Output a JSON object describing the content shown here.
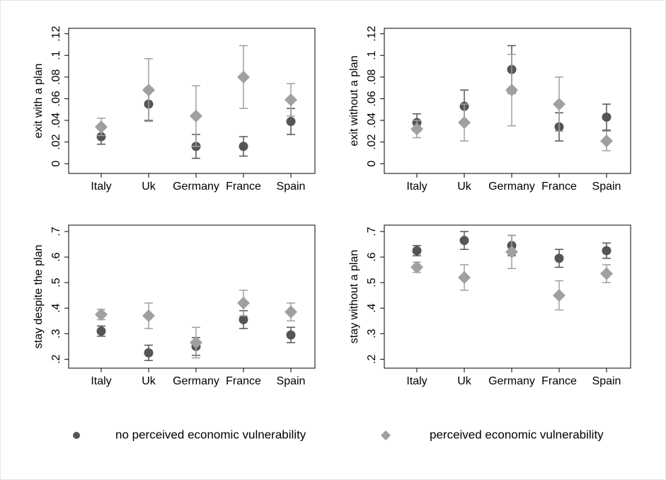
{
  "chart_data": [
    {
      "type": "errorbar",
      "ylabel": "exit with a plan",
      "categories": [
        "Italy",
        "Uk",
        "Germany",
        "France",
        "Spain"
      ],
      "ylim": [
        -0.009,
        0.125
      ],
      "yticks": [
        0,
        {
          "value": 0.02,
          "label": ".02"
        },
        {
          "value": 0.04,
          "label": ".04"
        },
        {
          "value": 0.06,
          "label": ".06"
        },
        {
          "value": 0.08,
          "label": ".08"
        },
        {
          "value": 0.1,
          "label": ".1"
        },
        {
          "value": 0.12,
          "label": ".12"
        }
      ],
      "series": [
        {
          "name": "no perceived economic vulnerability",
          "color": "#555555",
          "marker": "circle",
          "values": [
            0.025,
            0.055,
            0.016,
            0.016,
            0.039
          ],
          "errors": [
            0.007,
            0.015,
            0.011,
            0.009,
            0.012
          ]
        },
        {
          "name": "perceived economic vulnerability",
          "color": "#a0a0a0",
          "marker": "diamond",
          "values": [
            0.034,
            0.068,
            0.044,
            0.08,
            0.059
          ],
          "errors": [
            0.008,
            0.029,
            0.028,
            0.029,
            0.015
          ]
        }
      ]
    },
    {
      "type": "errorbar",
      "ylabel": "exit without a plan",
      "categories": [
        "Italy",
        "Uk",
        "Germany",
        "France",
        "Spain"
      ],
      "ylim": [
        -0.009,
        0.125
      ],
      "yticks": [
        0,
        {
          "value": 0.02,
          "label": ".02"
        },
        {
          "value": 0.04,
          "label": ".04"
        },
        {
          "value": 0.06,
          "label": ".06"
        },
        {
          "value": 0.08,
          "label": ".08"
        },
        {
          "value": 0.1,
          "label": ".1"
        },
        {
          "value": 0.12,
          "label": ".12"
        }
      ],
      "series": [
        {
          "name": "no perceived economic vulnerability",
          "color": "#555555",
          "marker": "circle",
          "values": [
            0.038,
            0.053,
            0.087,
            0.034,
            0.043
          ],
          "errors": [
            0.008,
            0.015,
            0.022,
            0.013,
            0.012
          ]
        },
        {
          "name": "perceived economic vulnerability",
          "color": "#a0a0a0",
          "marker": "diamond",
          "values": [
            0.032,
            0.038,
            0.068,
            0.055,
            0.021
          ],
          "errors": [
            0.008,
            0.017,
            0.033,
            0.025,
            0.009
          ]
        }
      ]
    },
    {
      "type": "errorbar",
      "ylabel": "stay despite the plan",
      "categories": [
        "Italy",
        "Uk",
        "Germany",
        "France",
        "Spain"
      ],
      "ylim": [
        0.165,
        0.725
      ],
      "yticks": [
        {
          "value": 0.2,
          "label": ".2"
        },
        {
          "value": 0.3,
          "label": ".3"
        },
        {
          "value": 0.4,
          "label": ".4"
        },
        {
          "value": 0.5,
          "label": ".5"
        },
        {
          "value": 0.6,
          "label": ".6"
        },
        {
          "value": 0.7,
          "label": ".7"
        }
      ],
      "series": [
        {
          "name": "no perceived economic vulnerability",
          "color": "#555555",
          "marker": "circle",
          "values": [
            0.31,
            0.225,
            0.25,
            0.355,
            0.295
          ],
          "errors": [
            0.02,
            0.03,
            0.035,
            0.035,
            0.03
          ]
        },
        {
          "name": "perceived economic vulnerability",
          "color": "#a0a0a0",
          "marker": "diamond",
          "values": [
            0.375,
            0.37,
            0.265,
            0.42,
            0.385
          ],
          "errors": [
            0.02,
            0.05,
            0.06,
            0.05,
            0.035
          ]
        }
      ]
    },
    {
      "type": "errorbar",
      "ylabel": "stay without a plan",
      "categories": [
        "Italy",
        "Uk",
        "Germany",
        "France",
        "Spain"
      ],
      "ylim": [
        0.165,
        0.725
      ],
      "yticks": [
        {
          "value": 0.2,
          "label": ".2"
        },
        {
          "value": 0.3,
          "label": ".3"
        },
        {
          "value": 0.4,
          "label": ".4"
        },
        {
          "value": 0.5,
          "label": ".5"
        },
        {
          "value": 0.6,
          "label": ".6"
        },
        {
          "value": 0.7,
          "label": ".7"
        }
      ],
      "series": [
        {
          "name": "no perceived economic vulnerability",
          "color": "#555555",
          "marker": "circle",
          "values": [
            0.625,
            0.665,
            0.645,
            0.595,
            0.625
          ],
          "errors": [
            0.02,
            0.035,
            0.04,
            0.035,
            0.03
          ]
        },
        {
          "name": "perceived economic vulnerability",
          "color": "#a0a0a0",
          "marker": "diamond",
          "values": [
            0.56,
            0.52,
            0.62,
            0.45,
            0.535
          ],
          "errors": [
            0.02,
            0.05,
            0.065,
            0.057,
            0.035
          ]
        }
      ]
    }
  ]
}
